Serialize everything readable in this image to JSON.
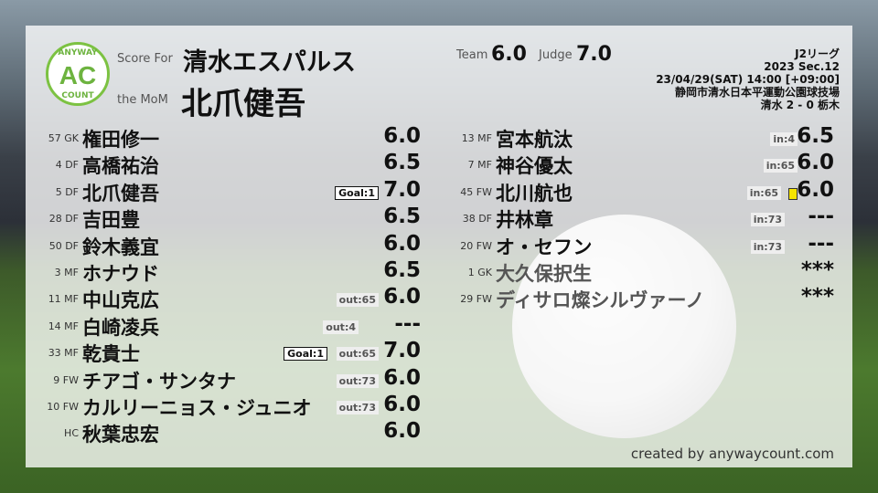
{
  "header": {
    "score_for_label": "Score For",
    "team_name": "清水エスパルス",
    "mom_label": "the MoM",
    "mom_name": "北爪健吾",
    "team_label": "Team",
    "team_score": "6.0",
    "judge_label": "Judge",
    "judge_score": "7.0"
  },
  "logo": {
    "top": "ANYWAY",
    "mid": "AC",
    "bottom": "COUNT"
  },
  "match": {
    "league": "J2リーグ",
    "section": "2023 Sec.12",
    "datetime": "23/04/29(SAT) 14:00 [+09:00]",
    "venue": "静岡市清水日本平運動公園球技場",
    "result": "清水 2 - 0 栃木"
  },
  "starters": [
    {
      "num": "57 GK",
      "name": "権田修一",
      "score": "6.0",
      "sub": "",
      "goal": ""
    },
    {
      "num": "4 DF",
      "name": "高橋祐治",
      "score": "6.5",
      "sub": "",
      "goal": ""
    },
    {
      "num": "5 DF",
      "name": "北爪健吾",
      "score": "7.0",
      "sub": "",
      "goal": "Goal:1"
    },
    {
      "num": "28 DF",
      "name": "吉田豊",
      "score": "6.5",
      "sub": "",
      "goal": ""
    },
    {
      "num": "50 DF",
      "name": "鈴木義宜",
      "score": "6.0",
      "sub": "",
      "goal": ""
    },
    {
      "num": "3 MF",
      "name": "ホナウド",
      "score": "6.5",
      "sub": "",
      "goal": ""
    },
    {
      "num": "11 MF",
      "name": "中山克広",
      "score": "6.0",
      "sub": "out:65",
      "goal": ""
    },
    {
      "num": "14 MF",
      "name": "白崎凌兵",
      "score": "---",
      "sub": "out:4",
      "goal": ""
    },
    {
      "num": "33 MF",
      "name": "乾貴士",
      "score": "7.0",
      "sub": "out:65",
      "goal": "Goal:1"
    },
    {
      "num": "9 FW",
      "name": "チアゴ・サンタナ",
      "score": "6.0",
      "sub": "out:73",
      "goal": ""
    },
    {
      "num": "10 FW",
      "name": "カルリーニョス・ジュニオ",
      "score": "6.0",
      "sub": "out:73",
      "goal": ""
    },
    {
      "num": "HC",
      "name": "秋葉忠宏",
      "score": "6.0",
      "sub": "",
      "goal": ""
    }
  ],
  "subs": [
    {
      "num": "13 MF",
      "name": "宮本航汰",
      "score": "6.5",
      "sub": "in:4",
      "card": ""
    },
    {
      "num": "7 MF",
      "name": "神谷優太",
      "score": "6.0",
      "sub": "in:65",
      "card": ""
    },
    {
      "num": "45 FW",
      "name": "北川航也",
      "score": "6.0",
      "sub": "in:65",
      "card": "yellow"
    },
    {
      "num": "38 DF",
      "name": "井林章",
      "score": "---",
      "sub": "in:73",
      "card": ""
    },
    {
      "num": "20 FW",
      "name": "オ・セフン",
      "score": "---",
      "sub": "in:73",
      "card": ""
    },
    {
      "num": "1 GK",
      "name": "大久保択生",
      "score": "***",
      "sub": "",
      "card": "",
      "unused": true
    },
    {
      "num": "29 FW",
      "name": "ディサロ燦シルヴァーノ",
      "score": "***",
      "sub": "",
      "card": "",
      "unused": true
    }
  ],
  "footer": {
    "credit": "created by anywaycount.com"
  },
  "colors": {
    "accent": "#7cc242",
    "yellow_card": "#f5e400"
  }
}
